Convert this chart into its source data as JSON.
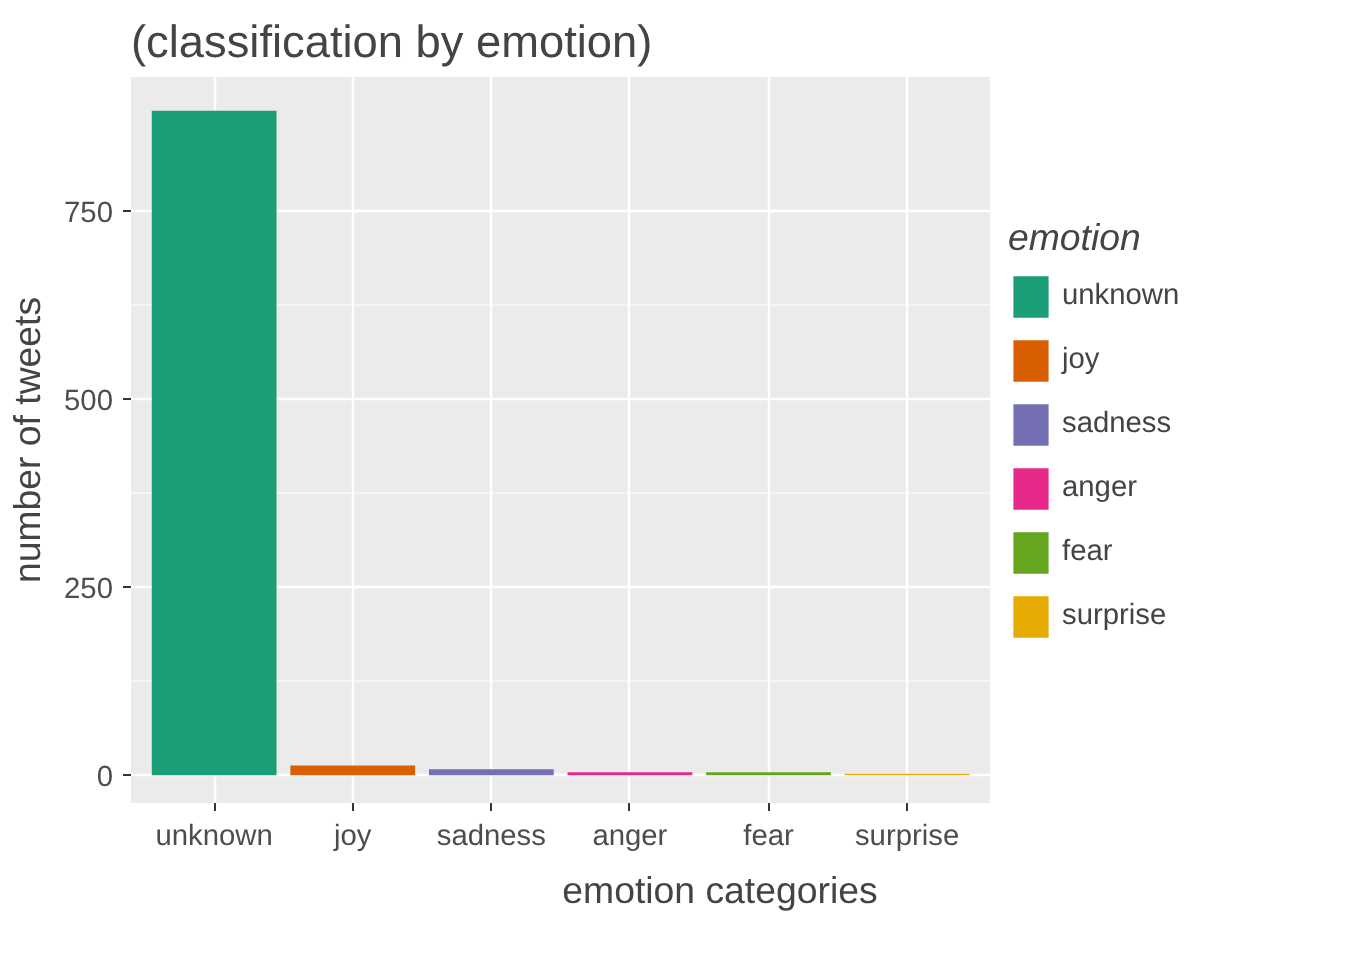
{
  "chart_data": {
    "type": "bar",
    "title": "(classification by emotion)",
    "xlabel": "emotion categories",
    "ylabel": "number of tweets",
    "legend_title": "emotion",
    "categories": [
      "unknown",
      "joy",
      "sadness",
      "anger",
      "fear",
      "surprise"
    ],
    "series": [
      {
        "name": "unknown",
        "color": "#1b9e77",
        "values": [
          883,
          null,
          null,
          null,
          null,
          null
        ]
      },
      {
        "name": "joy",
        "color": "#d95f02",
        "values": [
          null,
          13,
          null,
          null,
          null,
          null
        ]
      },
      {
        "name": "sadness",
        "color": "#7570b3",
        "values": [
          null,
          null,
          8,
          null,
          null,
          null
        ]
      },
      {
        "name": "anger",
        "color": "#e7298a",
        "values": [
          null,
          null,
          null,
          4,
          null,
          null
        ]
      },
      {
        "name": "fear",
        "color": "#66a61e",
        "values": [
          null,
          null,
          null,
          null,
          4,
          null
        ]
      },
      {
        "name": "surprise",
        "color": "#e6ab02",
        "values": [
          null,
          null,
          null,
          null,
          null,
          2
        ]
      }
    ],
    "ylim": [
      -37,
      928
    ],
    "yticks": [
      0,
      250,
      500,
      750
    ],
    "grid": true,
    "legend": "right"
  }
}
